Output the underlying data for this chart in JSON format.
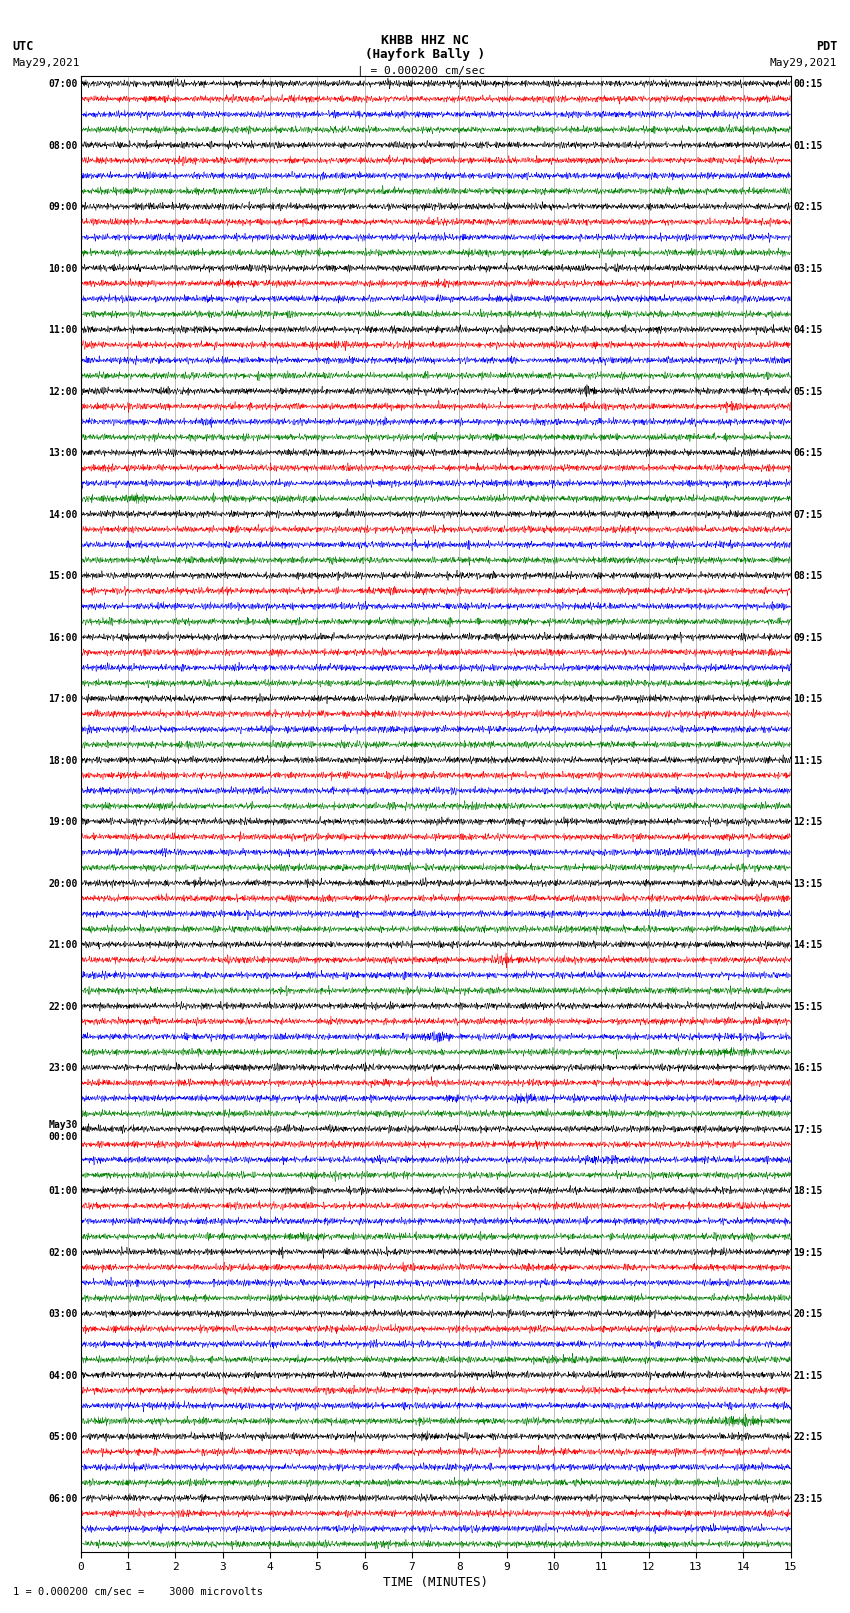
{
  "title_line1": "KHBB HHZ NC",
  "title_line2": "(Hayfork Bally )",
  "scale_text": "= 0.000200 cm/sec",
  "bottom_label": "1 = 0.000200 cm/sec =    3000 microvolts",
  "xlabel": "TIME (MINUTES)",
  "left_header": "UTC",
  "left_date": "May29,2021",
  "right_header": "PDT",
  "right_date": "May29,2021",
  "utc_hour_labels": [
    "07:00",
    "08:00",
    "09:00",
    "10:00",
    "11:00",
    "12:00",
    "13:00",
    "14:00",
    "15:00",
    "16:00",
    "17:00",
    "18:00",
    "19:00",
    "20:00",
    "21:00",
    "22:00",
    "23:00",
    "May30\n00:00",
    "01:00",
    "02:00",
    "03:00",
    "04:00",
    "05:00",
    "06:00"
  ],
  "pdt_hour_labels": [
    "00:15",
    "01:15",
    "02:15",
    "03:15",
    "04:15",
    "05:15",
    "06:15",
    "07:15",
    "08:15",
    "09:15",
    "10:15",
    "11:15",
    "12:15",
    "13:15",
    "14:15",
    "15:15",
    "16:15",
    "17:15",
    "18:15",
    "19:15",
    "20:15",
    "21:15",
    "22:15",
    "23:15"
  ],
  "trace_colors": [
    "black",
    "red",
    "blue",
    "green"
  ],
  "bg_color": "white",
  "xmin": 0,
  "xmax": 15,
  "figsize": [
    8.5,
    16.13
  ],
  "dpi": 100,
  "n_hours": 24,
  "traces_per_hour": 4
}
